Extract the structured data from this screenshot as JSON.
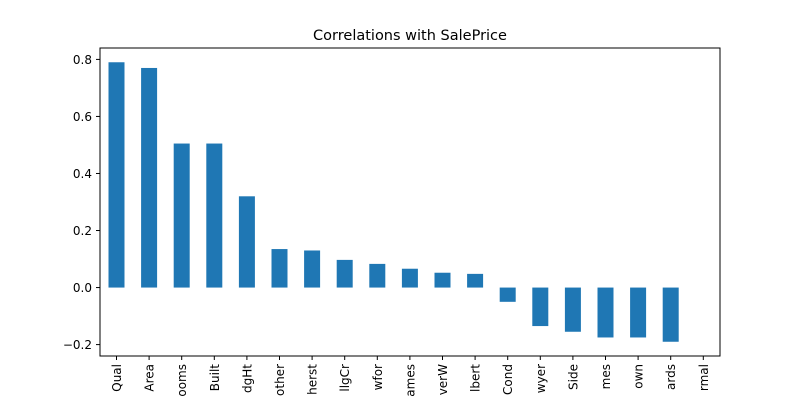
{
  "chart_data": {
    "type": "bar",
    "title": "Correlations with SalePrice",
    "xlabel": "",
    "ylabel": "",
    "categories": [
      "Qual",
      "Area",
      "ooms",
      "Built",
      "dgHt",
      "other",
      "herst",
      "llgCr",
      "wfor",
      "ames",
      "verW",
      "lbert",
      "Cond",
      "wyer",
      "Side",
      "mes",
      "own",
      "ards",
      "rmal"
    ],
    "values": [
      0.79,
      0.77,
      0.505,
      0.505,
      0.32,
      0.135,
      0.13,
      0.097,
      0.083,
      0.066,
      0.052,
      0.048,
      -0.05,
      -0.135,
      -0.155,
      -0.175,
      -0.175,
      -0.19,
      null
    ],
    "ylim": [
      -0.24,
      0.84
    ],
    "yticks": [
      -0.2,
      0.0,
      0.2,
      0.4,
      0.6,
      0.8
    ],
    "ytick_labels": [
      "−0.2",
      "0.0",
      "0.2",
      "0.4",
      "0.6",
      "0.8"
    ],
    "grid": false,
    "colors": {
      "bar": "#1f77b4",
      "axes": "#000000"
    }
  }
}
